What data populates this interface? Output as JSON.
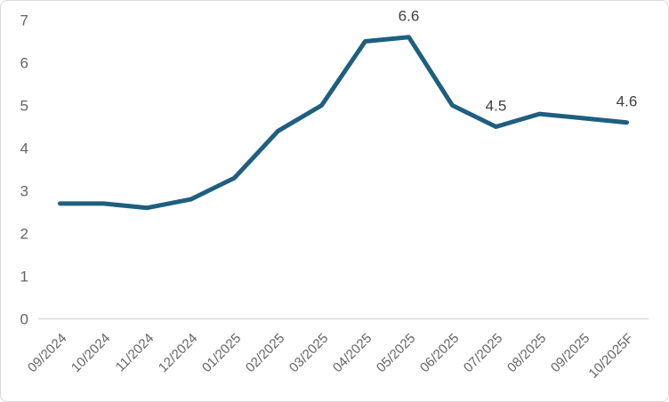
{
  "window": {
    "background_color": "#ffffff",
    "border_color": "#d9d9d9"
  },
  "chart_data": {
    "type": "line",
    "title": "",
    "categories": [
      "09/2024",
      "10/2024",
      "11/2024",
      "12/2024",
      "01/2025",
      "02/2025",
      "03/2025",
      "04/2025",
      "05/2025",
      "06/2025",
      "07/2025",
      "08/2025",
      "09/2025",
      "10/2025F"
    ],
    "series": [
      {
        "name": "series-1",
        "color": "#1e5f80",
        "line_width": 5,
        "values": [
          2.7,
          2.7,
          2.6,
          2.8,
          3.3,
          4.4,
          5.0,
          6.5,
          6.6,
          5.0,
          4.5,
          4.8,
          4.7,
          4.6
        ]
      }
    ],
    "point_labels": [
      {
        "index": 8,
        "text": "6.6"
      },
      {
        "index": 10,
        "text": "4.5"
      },
      {
        "index": 13,
        "text": "4.6"
      }
    ],
    "xlabel": "",
    "ylabel": "",
    "ylim": [
      0,
      7
    ],
    "y_ticks": [
      0,
      1,
      2,
      3,
      4,
      5,
      6,
      7
    ],
    "grid": false,
    "legend": "none",
    "x_label_rotation": -45,
    "axis_line_color": "#d9d9d9",
    "tick_label_color": "#646464",
    "data_label_color": "#404040"
  }
}
